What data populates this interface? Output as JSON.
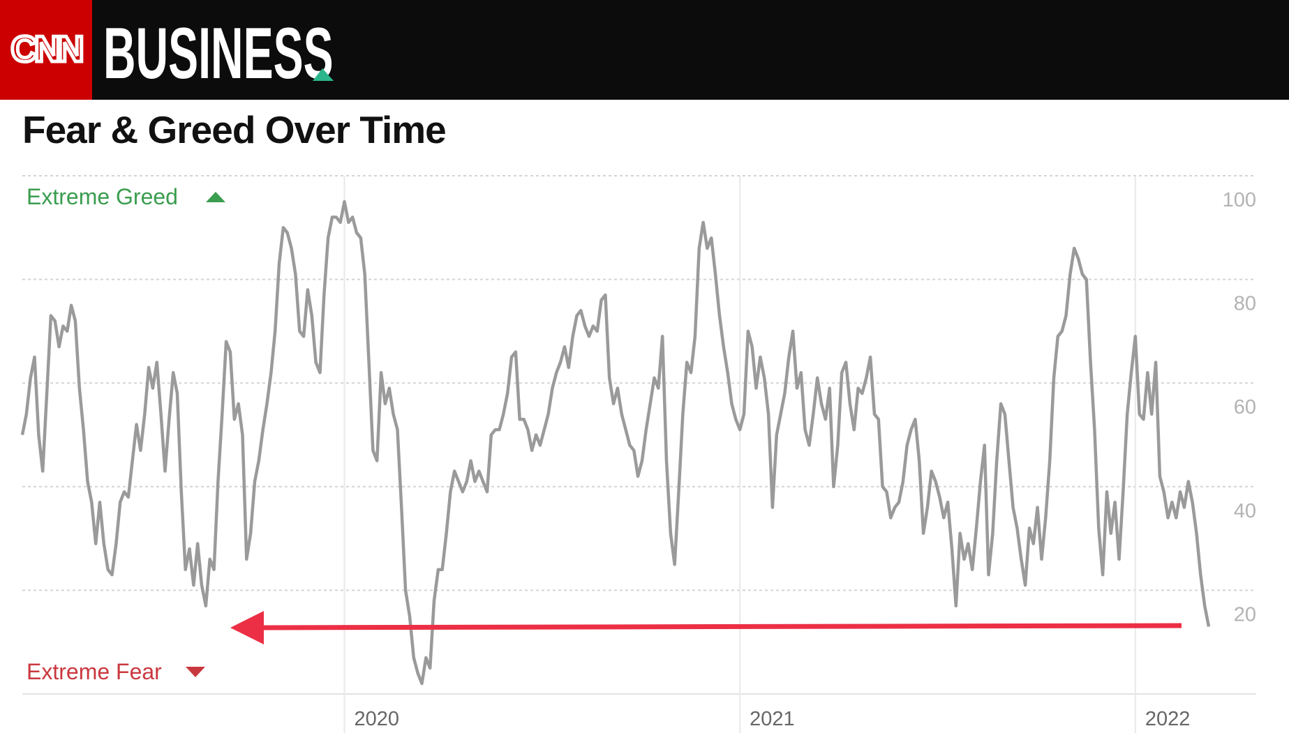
{
  "header": {
    "logo": "CNN",
    "brand": "BUSINESS"
  },
  "chart_data": {
    "type": "line",
    "title": "Fear & Greed Over Time",
    "annotations": [
      "Extreme Greed",
      "Extreme Fear"
    ],
    "categories": [
      null,
      null,
      null,
      null,
      null,
      null,
      null,
      null,
      null,
      null,
      null,
      null,
      null,
      null,
      null,
      null,
      null,
      null,
      null,
      null,
      null,
      null,
      null,
      null,
      null,
      null,
      null,
      null,
      null,
      null,
      null,
      null,
      null,
      null,
      null,
      null,
      null,
      null,
      null,
      null,
      null,
      null,
      null,
      null,
      null,
      null,
      null,
      null,
      null,
      null,
      null,
      null,
      null,
      null,
      null,
      null,
      null,
      null,
      null,
      null,
      null,
      null,
      null,
      null,
      null,
      null,
      null,
      null,
      null,
      null,
      null,
      null,
      null,
      null,
      null,
      null,
      null,
      null,
      null,
      "2020",
      null,
      null,
      null,
      null,
      null,
      null,
      null,
      null,
      null,
      null,
      null,
      null,
      null,
      null,
      null,
      null,
      null,
      null,
      null,
      null,
      null,
      null,
      null,
      null,
      null,
      null,
      null,
      null,
      null,
      null,
      null,
      null,
      null,
      null,
      null,
      null,
      null,
      null,
      null,
      null,
      null,
      null,
      null,
      null,
      null,
      null,
      null,
      null,
      null,
      null,
      null,
      null,
      null,
      null,
      null,
      null,
      null,
      null,
      null,
      null,
      null,
      null,
      null,
      null,
      null,
      null,
      null,
      null,
      null,
      null,
      null,
      null,
      null,
      null,
      null,
      null,
      null,
      null,
      null,
      null,
      null,
      null,
      null,
      null,
      null,
      null,
      null,
      null,
      null,
      null,
      null,
      null,
      null,
      null,
      null,
      null,
      "2021",
      null,
      null,
      null,
      null,
      null,
      null,
      null,
      null,
      null,
      null,
      null,
      null,
      null,
      null,
      null,
      null,
      null,
      null,
      null,
      null,
      null,
      null,
      null,
      null,
      null,
      null,
      null,
      null,
      null,
      null,
      null,
      null,
      null,
      null,
      null,
      null,
      null,
      null,
      null,
      null,
      null,
      null,
      null,
      null,
      null,
      null,
      null,
      null,
      null,
      null,
      null,
      null,
      null,
      null,
      null,
      null,
      null,
      null,
      null,
      null,
      null,
      null,
      null,
      null,
      null,
      null,
      null,
      null,
      null,
      null,
      null,
      null,
      null,
      null,
      null,
      null,
      null,
      null,
      null,
      null,
      null,
      null,
      null,
      null,
      null,
      null,
      null,
      null,
      null,
      null,
      null,
      null,
      null,
      null,
      null,
      null,
      "2022",
      null,
      null,
      null,
      null,
      null,
      null,
      null,
      null,
      null,
      null,
      null,
      null,
      null,
      null,
      null,
      null,
      null,
      null
    ],
    "series": [
      {
        "color": "#9a9a9a",
        "values": [
          50,
          54,
          61,
          65,
          50,
          43,
          58,
          73,
          72,
          67,
          71,
          70,
          75,
          72,
          59,
          51,
          41,
          37,
          29,
          37,
          29,
          24,
          23,
          29,
          37,
          39,
          38,
          45,
          52,
          47,
          54,
          63,
          59,
          64,
          54,
          43,
          53,
          62,
          58,
          39,
          24,
          28,
          21,
          29,
          21,
          17,
          26,
          24,
          41,
          54,
          68,
          66,
          53,
          56,
          50,
          26,
          31,
          41,
          45,
          51,
          56,
          62,
          70,
          83,
          90,
          89,
          86,
          81,
          70,
          69,
          78,
          73,
          64,
          62,
          77,
          88,
          92,
          92,
          91,
          95,
          91,
          92,
          89,
          88,
          81,
          64,
          47,
          45,
          62,
          56,
          59,
          54,
          51,
          36,
          20,
          15,
          7,
          4,
          2,
          7,
          5,
          18,
          24,
          24,
          31,
          39,
          43,
          41,
          39,
          41,
          45,
          41,
          43,
          41,
          39,
          50,
          51,
          51,
          54,
          58,
          65,
          66,
          53,
          53,
          51,
          47,
          50,
          48,
          51,
          54,
          59,
          62,
          64,
          67,
          63,
          69,
          73,
          74,
          71,
          69,
          71,
          70,
          76,
          77,
          61,
          56,
          59,
          54,
          51,
          48,
          47,
          42,
          45,
          51,
          56,
          61,
          59,
          69,
          45,
          31,
          25,
          39,
          54,
          64,
          62,
          69,
          86,
          91,
          86,
          88,
          81,
          73,
          67,
          62,
          56,
          53,
          51,
          54,
          70,
          67,
          59,
          65,
          61,
          54,
          36,
          50,
          54,
          58,
          65,
          70,
          59,
          62,
          51,
          48,
          54,
          61,
          56,
          53,
          59,
          40,
          48,
          62,
          64,
          56,
          51,
          59,
          58,
          61,
          65,
          54,
          53,
          40,
          39,
          34,
          36,
          37,
          41,
          48,
          51,
          53,
          45,
          31,
          36,
          43,
          41,
          38,
          34,
          37,
          28,
          17,
          31,
          26,
          29,
          24,
          32,
          41,
          48,
          23,
          31,
          45,
          56,
          54,
          45,
          36,
          32,
          26,
          21,
          32,
          29,
          36,
          26,
          34,
          45,
          61,
          69,
          70,
          73,
          81,
          86,
          84,
          81,
          80,
          64,
          51,
          32,
          23,
          39,
          31,
          37,
          26,
          39,
          54,
          62,
          69,
          54,
          53,
          62,
          54,
          64,
          42,
          39,
          34,
          37,
          34,
          39,
          36,
          41,
          37,
          31,
          23,
          17,
          13
        ]
      }
    ],
    "ylim": [
      0,
      100
    ],
    "yticks": [
      20,
      40,
      60,
      80,
      100
    ],
    "grid": true
  }
}
